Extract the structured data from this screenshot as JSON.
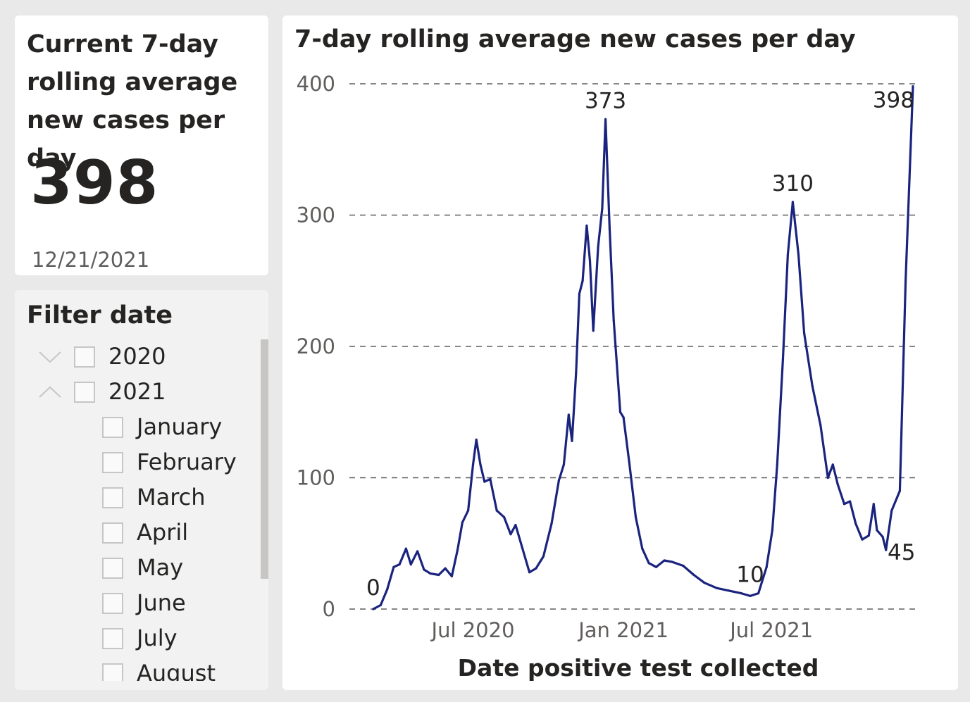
{
  "kpi": {
    "title": "Current 7-day rolling average new cases per day",
    "value": "398",
    "date": "12/21/2021"
  },
  "filter": {
    "title": "Filter date",
    "years": [
      {
        "label": "2020",
        "expanded": false
      },
      {
        "label": "2021",
        "expanded": true
      }
    ],
    "months": [
      "January",
      "February",
      "March",
      "April",
      "May",
      "June",
      "July",
      "August"
    ]
  },
  "colors": {
    "line": "#1a237e",
    "line_highlight": "#8e93c8",
    "grid": "#605e5c"
  },
  "chart_data": {
    "type": "line",
    "title": "7-day rolling average new cases per day",
    "xlabel": "Date positive test collected",
    "ylabel": "",
    "ylim": [
      0,
      400
    ],
    "yticks": [
      0,
      100,
      200,
      300,
      400
    ],
    "xticks": [
      {
        "label": "Jul 2020",
        "date": "2020-07-01"
      },
      {
        "label": "Jan 2021",
        "date": "2021-01-01"
      },
      {
        "label": "Jul 2021",
        "date": "2021-07-01"
      }
    ],
    "xrange": [
      "2020-03-01",
      "2021-12-21"
    ],
    "grid": true,
    "series": [
      {
        "points": [
          [
            "2020-03-01",
            0
          ],
          [
            "2020-03-10",
            3
          ],
          [
            "2020-03-18",
            15
          ],
          [
            "2020-03-26",
            32
          ],
          [
            "2020-04-02",
            34
          ],
          [
            "2020-04-10",
            46
          ],
          [
            "2020-04-16",
            34
          ],
          [
            "2020-04-24",
            44
          ],
          [
            "2020-05-02",
            30
          ],
          [
            "2020-05-10",
            27
          ],
          [
            "2020-05-20",
            26
          ],
          [
            "2020-05-28",
            31
          ],
          [
            "2020-06-05",
            25
          ],
          [
            "2020-06-12",
            45
          ],
          [
            "2020-06-18",
            66
          ],
          [
            "2020-06-25",
            75
          ],
          [
            "2020-07-01",
            110
          ],
          [
            "2020-07-05",
            129
          ],
          [
            "2020-07-10",
            110
          ],
          [
            "2020-07-15",
            97
          ],
          [
            "2020-07-22",
            99
          ],
          [
            "2020-07-30",
            75
          ],
          [
            "2020-08-08",
            70
          ],
          [
            "2020-08-16",
            57
          ],
          [
            "2020-08-22",
            64
          ],
          [
            "2020-08-30",
            47
          ],
          [
            "2020-09-08",
            28
          ],
          [
            "2020-09-16",
            31
          ],
          [
            "2020-09-25",
            40
          ],
          [
            "2020-10-05",
            65
          ],
          [
            "2020-10-14",
            98
          ],
          [
            "2020-10-20",
            110
          ],
          [
            "2020-10-26",
            148
          ],
          [
            "2020-10-30",
            128
          ],
          [
            "2020-11-04",
            180
          ],
          [
            "2020-11-08",
            240
          ],
          [
            "2020-11-12",
            250
          ],
          [
            "2020-11-17",
            292
          ],
          [
            "2020-11-21",
            265
          ],
          [
            "2020-11-25",
            212
          ],
          [
            "2020-12-01",
            276
          ],
          [
            "2020-12-06",
            305
          ],
          [
            "2020-12-10",
            373
          ],
          [
            "2020-12-15",
            290
          ],
          [
            "2020-12-20",
            220
          ],
          [
            "2020-12-28",
            150
          ],
          [
            "2021-01-01",
            146
          ],
          [
            "2021-01-08",
            112
          ],
          [
            "2021-01-16",
            70
          ],
          [
            "2021-01-24",
            46
          ],
          [
            "2021-02-01",
            35
          ],
          [
            "2021-02-10",
            32
          ],
          [
            "2021-02-20",
            37
          ],
          [
            "2021-03-01",
            36
          ],
          [
            "2021-03-15",
            33
          ],
          [
            "2021-03-28",
            26
          ],
          [
            "2021-04-10",
            20
          ],
          [
            "2021-04-25",
            16
          ],
          [
            "2021-05-10",
            14
          ],
          [
            "2021-05-25",
            12
          ],
          [
            "2021-06-05",
            10
          ],
          [
            "2021-06-15",
            12
          ],
          [
            "2021-06-25",
            32
          ],
          [
            "2021-07-02",
            60
          ],
          [
            "2021-07-08",
            110
          ],
          [
            "2021-07-15",
            190
          ],
          [
            "2021-07-21",
            270
          ],
          [
            "2021-07-27",
            310
          ],
          [
            "2021-08-03",
            270
          ],
          [
            "2021-08-10",
            210
          ],
          [
            "2021-08-20",
            170
          ],
          [
            "2021-08-30",
            140
          ],
          [
            "2021-09-08",
            100
          ],
          [
            "2021-09-14",
            110
          ],
          [
            "2021-09-20",
            95
          ],
          [
            "2021-09-28",
            80
          ],
          [
            "2021-10-05",
            82
          ],
          [
            "2021-10-12",
            65
          ],
          [
            "2021-10-20",
            53
          ],
          [
            "2021-10-28",
            56
          ],
          [
            "2021-11-03",
            80
          ],
          [
            "2021-11-07",
            60
          ],
          [
            "2021-11-14",
            55
          ],
          [
            "2021-11-18",
            45
          ],
          [
            "2021-11-25",
            75
          ],
          [
            "2021-12-05",
            90
          ],
          [
            "2021-12-12",
            250
          ],
          [
            "2021-12-21",
            398
          ]
        ]
      }
    ],
    "data_labels": [
      {
        "text": "0",
        "date": "2020-03-01",
        "value": 0
      },
      {
        "text": "373",
        "date": "2020-12-10",
        "value": 373
      },
      {
        "text": "10",
        "date": "2021-06-05",
        "value": 10
      },
      {
        "text": "310",
        "date": "2021-07-27",
        "value": 310
      },
      {
        "text": "45",
        "date": "2021-11-18",
        "value": 45
      },
      {
        "text": "398",
        "date": "2021-12-21",
        "value": 398
      }
    ]
  }
}
